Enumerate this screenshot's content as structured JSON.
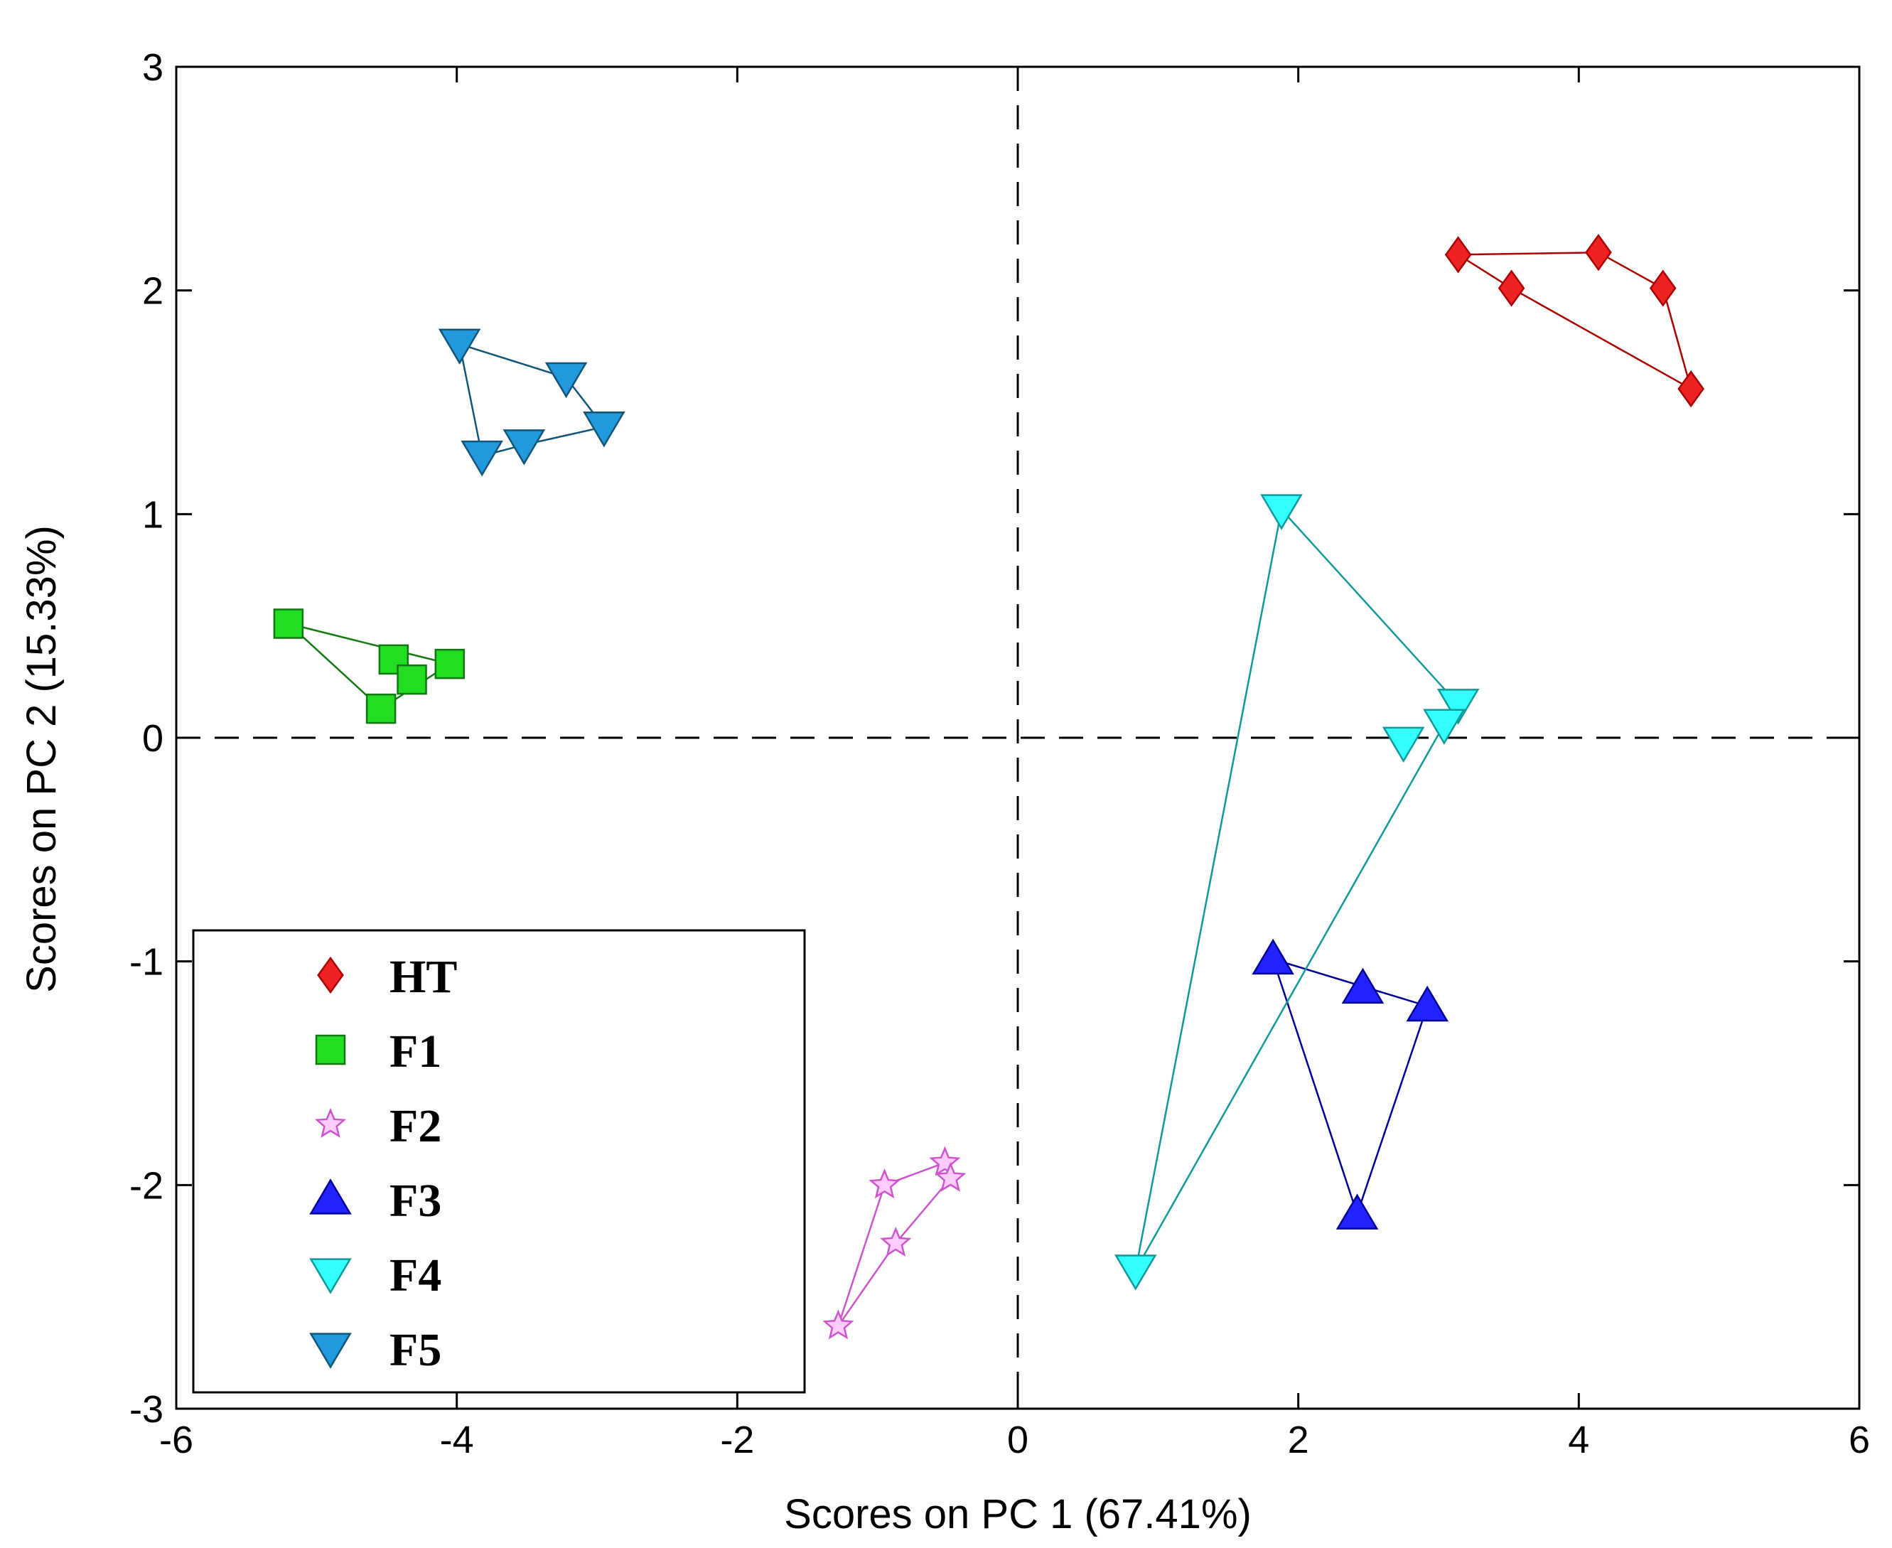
{
  "chart_data": {
    "type": "scatter",
    "title": "",
    "xlabel": "Scores on PC 1 (67.41%)",
    "ylabel": "Scores on PC 2 (15.33%)",
    "xlim": [
      -6,
      6
    ],
    "ylim": [
      -3,
      3
    ],
    "xticks": [
      -6,
      -4,
      -2,
      0,
      2,
      4,
      6
    ],
    "yticks": [
      -3,
      -2,
      -1,
      0,
      1,
      2,
      3
    ],
    "xtick_labels": [
      "-6",
      "-4",
      "-2",
      "0",
      "2",
      "4",
      "6"
    ],
    "ytick_labels": [
      "-3",
      "-2",
      "-1",
      "0",
      "1",
      "2",
      "3"
    ],
    "reference_lines": {
      "x": 0,
      "y": 0,
      "style": "dashed"
    },
    "legend_position": "bottom-left",
    "series": [
      {
        "name": "HT",
        "marker": "diamond",
        "color": "#ee2222",
        "edge": "#aa0000",
        "points": [
          [
            3.14,
            2.16
          ],
          [
            3.52,
            2.01
          ],
          [
            4.14,
            2.17
          ],
          [
            4.6,
            2.01
          ],
          [
            4.8,
            1.56
          ]
        ],
        "hull": [
          0,
          2,
          3,
          4,
          1
        ]
      },
      {
        "name": "F1",
        "marker": "square",
        "color": "#22dd22",
        "edge": "#117711",
        "points": [
          [
            -5.2,
            0.51
          ],
          [
            -4.45,
            0.35
          ],
          [
            -4.32,
            0.26
          ],
          [
            -4.05,
            0.33
          ],
          [
            -4.54,
            0.13
          ]
        ],
        "hull": [
          0,
          3,
          4
        ]
      },
      {
        "name": "F2",
        "marker": "star",
        "color": "#ffccff",
        "edge": "#cc55cc",
        "points": [
          [
            -0.95,
            -2.0
          ],
          [
            -0.52,
            -1.9
          ],
          [
            -0.48,
            -1.97
          ],
          [
            -0.87,
            -2.26
          ],
          [
            -1.28,
            -2.63
          ]
        ],
        "hull": [
          0,
          1,
          2,
          3,
          4
        ]
      },
      {
        "name": "F3",
        "marker": "triangle-up",
        "color": "#2222ff",
        "edge": "#000099",
        "points": [
          [
            1.82,
            -0.99
          ],
          [
            2.46,
            -1.12
          ],
          [
            2.92,
            -1.2
          ],
          [
            2.42,
            -2.13
          ]
        ],
        "hull": [
          0,
          2,
          3
        ]
      },
      {
        "name": "F4",
        "marker": "triangle-down",
        "color": "#33ffff",
        "edge": "#119999",
        "points": [
          [
            1.88,
            1.02
          ],
          [
            3.14,
            0.15
          ],
          [
            3.04,
            0.06
          ],
          [
            2.75,
            -0.02
          ],
          [
            0.84,
            -2.38
          ]
        ],
        "hull": [
          0,
          1,
          2,
          4
        ]
      },
      {
        "name": "F5",
        "marker": "triangle-down",
        "color": "#2299dd",
        "edge": "#115577",
        "points": [
          [
            -3.98,
            1.76
          ],
          [
            -3.22,
            1.61
          ],
          [
            -2.95,
            1.39
          ],
          [
            -3.52,
            1.31
          ],
          [
            -3.82,
            1.26
          ]
        ],
        "hull": [
          0,
          1,
          2,
          3,
          4
        ]
      }
    ]
  }
}
